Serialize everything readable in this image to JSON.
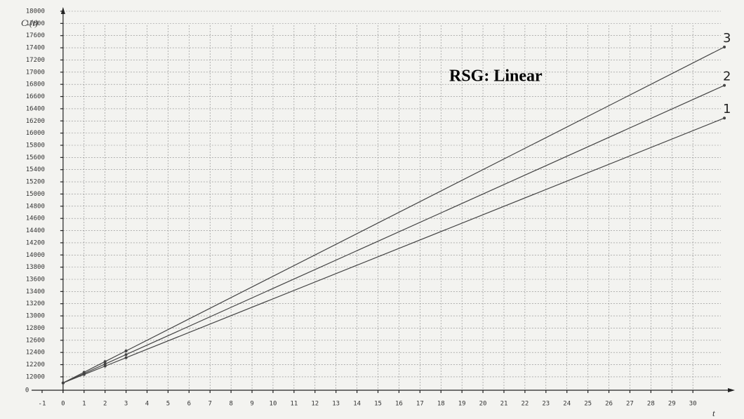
{
  "chart_data": {
    "type": "line",
    "title": "RSG: Linear",
    "y_label": "C (t)",
    "x_label": "t",
    "y_break_label": "0",
    "series": [
      {
        "name": "1",
        "color": "#444444",
        "x": [
          0,
          1,
          2,
          3,
          31.5
        ],
        "values": [
          11900,
          12038,
          12176,
          12314,
          16247
        ]
      },
      {
        "name": "2",
        "color": "#444444",
        "x": [
          0,
          1,
          2,
          3,
          31.5
        ],
        "values": [
          11900,
          12055,
          12210,
          12365,
          16783
        ]
      },
      {
        "name": "3",
        "color": "#444444",
        "x": [
          0,
          1,
          2,
          3,
          31.5
        ],
        "values": [
          11900,
          12075,
          12250,
          12425,
          17413
        ]
      }
    ],
    "xlim": [
      -1.5,
      32
    ],
    "ylim": [
      11780,
      18000
    ],
    "xticks": [
      -1,
      0,
      1,
      2,
      3,
      4,
      5,
      6,
      7,
      8,
      9,
      10,
      11,
      12,
      13,
      14,
      15,
      16,
      17,
      18,
      19,
      20,
      21,
      22,
      23,
      24,
      25,
      26,
      27,
      28,
      29,
      30
    ],
    "yticks": [
      12000,
      12200,
      12400,
      12600,
      12800,
      13000,
      13200,
      13400,
      13600,
      13800,
      14000,
      14200,
      14400,
      14600,
      14800,
      15000,
      15200,
      15400,
      15600,
      15800,
      16000,
      16200,
      16400,
      16600,
      16800,
      17000,
      17200,
      17400,
      17600,
      17800,
      18000
    ],
    "grid": true
  }
}
